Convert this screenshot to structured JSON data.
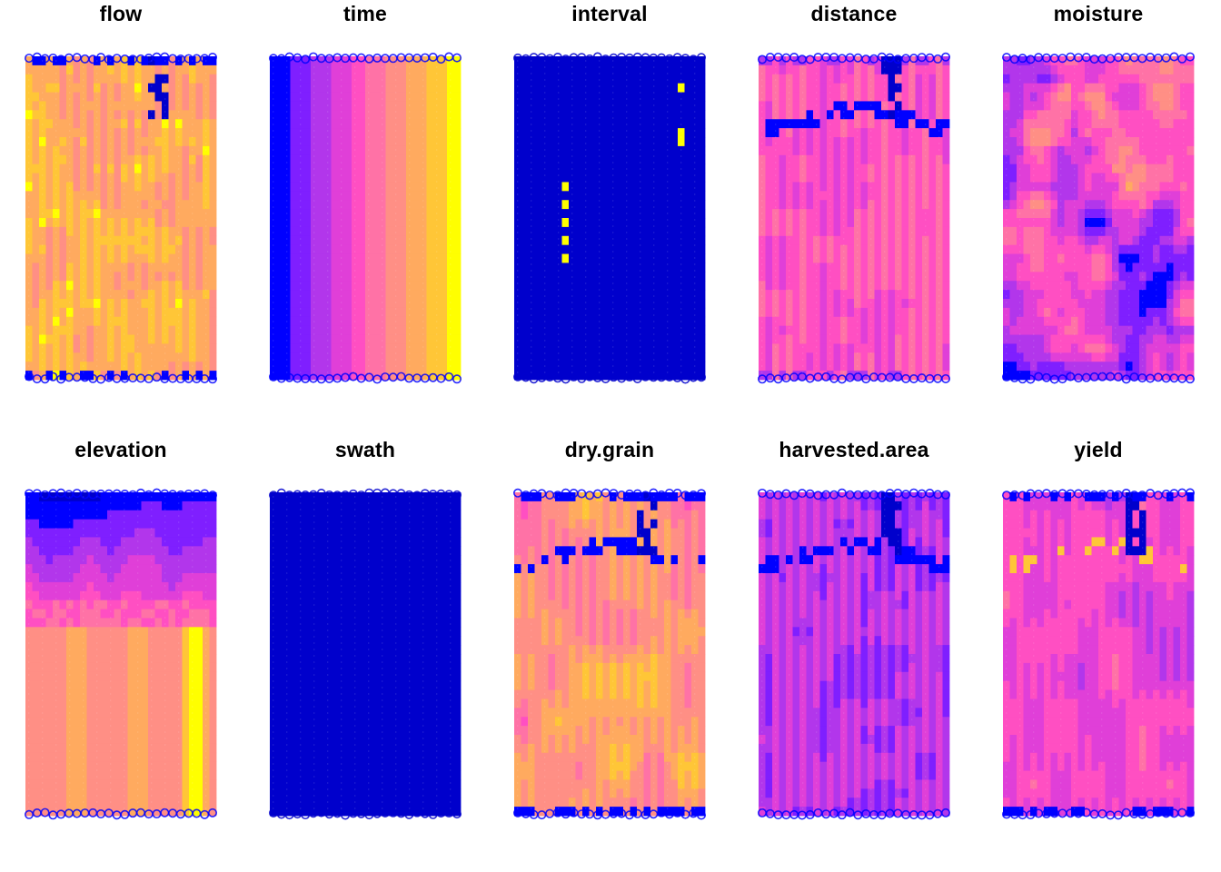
{
  "palette": [
    "#0000CC",
    "#0000FF",
    "#7F1FFF",
    "#B236EB",
    "#E03FD8",
    "#FF4FC2",
    "#FF72A6",
    "#FF8F85",
    "#FFAA5F",
    "#FFC637",
    "#FFFF00"
  ],
  "chart_data": [
    {
      "type": "heatmap",
      "title": "flow",
      "pattern": "flow",
      "dominant": "#FFAA5F"
    },
    {
      "type": "heatmap",
      "title": "time",
      "pattern": "time",
      "dominant": "#0000FF"
    },
    {
      "type": "heatmap",
      "title": "interval",
      "pattern": "interval",
      "dominant": "#0000CC"
    },
    {
      "type": "heatmap",
      "title": "distance",
      "pattern": "distance",
      "dominant": "#FF4FC2"
    },
    {
      "type": "heatmap",
      "title": "moisture",
      "pattern": "moisture",
      "dominant": "#7F1FFF"
    },
    {
      "type": "heatmap",
      "title": "elevation",
      "pattern": "elevation",
      "dominant": "#FF8F85"
    },
    {
      "type": "heatmap",
      "title": "swath",
      "pattern": "swath",
      "dominant": "#0000CC"
    },
    {
      "type": "heatmap",
      "title": "dry.grain",
      "pattern": "drygrain",
      "dominant": "#FF72A6"
    },
    {
      "type": "heatmap",
      "title": "harvested.area",
      "pattern": "harvested",
      "dominant": "#B236EB"
    },
    {
      "type": "heatmap",
      "title": "yield",
      "pattern": "yield",
      "dominant": "#E03FD8"
    }
  ]
}
